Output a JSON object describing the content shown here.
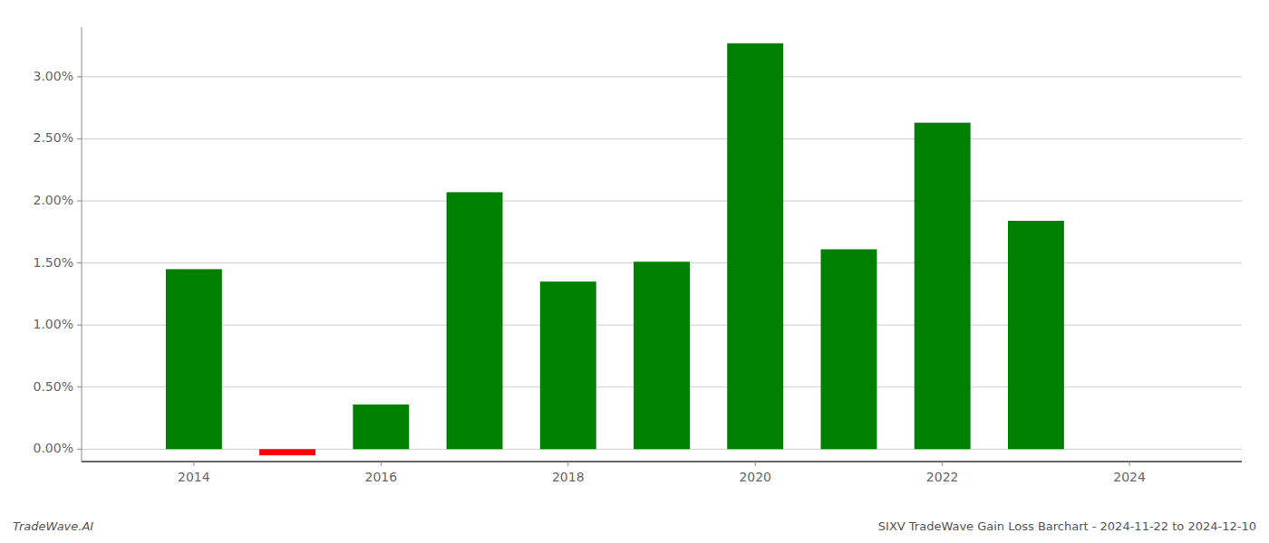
{
  "chart_data": {
    "type": "bar",
    "title": "SIXV TradeWave Gain Loss Barchart - 2024-11-22 to 2024-12-10",
    "annotations": [
      "TradeWave.AI"
    ],
    "x": [
      2014,
      2015,
      2016,
      2017,
      2018,
      2019,
      2020,
      2021,
      2022,
      2023,
      2024
    ],
    "values": [
      0.0145,
      -0.0005,
      0.0036,
      0.0207,
      0.0135,
      0.0151,
      0.0327,
      0.0161,
      0.0263,
      0.0184,
      null
    ],
    "colors": [
      "#008000",
      "#ff0000",
      "#008000",
      "#008000",
      "#008000",
      "#008000",
      "#008000",
      "#008000",
      "#008000",
      "#008000",
      null
    ],
    "xlim": [
      2012.8,
      2025.2
    ],
    "xticks": [
      2014,
      2016,
      2018,
      2020,
      2022,
      2024
    ],
    "ylim": [
      -0.001,
      0.034
    ],
    "yticks": [
      {
        "value": 0.0,
        "label": "0.00%"
      },
      {
        "value": 0.005,
        "label": "0.50%"
      },
      {
        "value": 0.01,
        "label": "1.00%"
      },
      {
        "value": 0.015,
        "label": "1.50%"
      },
      {
        "value": 0.02,
        "label": "2.00%"
      },
      {
        "value": 0.025,
        "label": "2.50%"
      },
      {
        "value": 0.03,
        "label": "3.00%"
      }
    ],
    "grid": true
  }
}
